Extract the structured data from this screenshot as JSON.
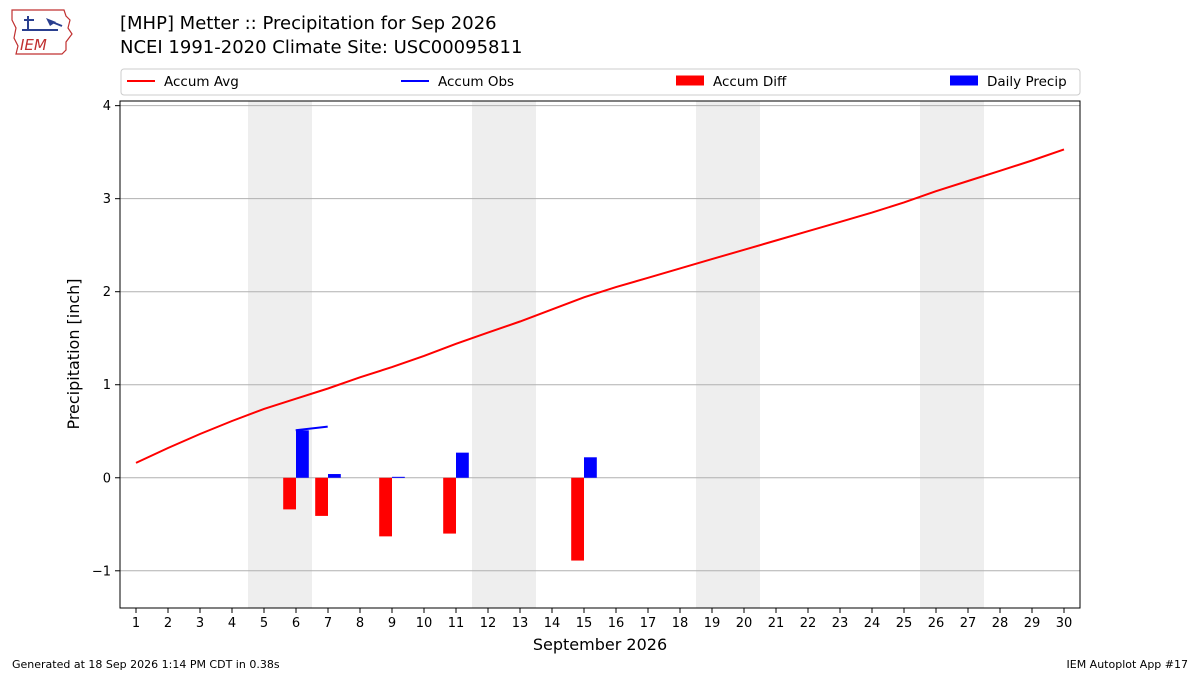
{
  "header": {
    "title_line1": "[MHP] Metter :: Precipitation for Sep 2026",
    "title_line2": "NCEI 1991-2020 Climate Site: USC00095811"
  },
  "logo": {
    "text": "IEM",
    "icon": "iem-iowa-logo-icon"
  },
  "footer": {
    "generated": "Generated at 18 Sep 2026 1:14 PM CDT in 0.38s",
    "app": "IEM Autoplot App #17"
  },
  "colors": {
    "accum_avg": "#ff0000",
    "accum_obs": "#0000ff",
    "accum_diff": "#ff0000",
    "daily_precip": "#0000ff",
    "weekend_shade": "#eeeeee",
    "grid": "#b0b0b0"
  },
  "chart_data": {
    "type": "bar",
    "xlabel": "September 2026",
    "ylabel": "Precipitation [inch]",
    "ylim": [
      -1.4,
      4.05
    ],
    "yticks": [
      -1,
      0,
      1,
      2,
      3,
      4
    ],
    "ytick_labels": [
      "−1",
      "0",
      "1",
      "2",
      "3",
      "4"
    ],
    "grid": "horizontal",
    "legend_position": "top",
    "x": [
      1,
      2,
      3,
      4,
      5,
      6,
      7,
      8,
      9,
      10,
      11,
      12,
      13,
      14,
      15,
      16,
      17,
      18,
      19,
      20,
      21,
      22,
      23,
      24,
      25,
      26,
      27,
      28,
      29,
      30
    ],
    "weekend_days": [
      5,
      6,
      12,
      13,
      19,
      20,
      26,
      27
    ],
    "legend": [
      {
        "label": "Accum Avg",
        "kind": "line",
        "color": "#ff0000"
      },
      {
        "label": "Accum Obs",
        "kind": "line",
        "color": "#0000ff"
      },
      {
        "label": "Accum Diff",
        "kind": "bar",
        "color": "#ff0000"
      },
      {
        "label": "Daily Precip",
        "kind": "bar",
        "color": "#0000ff"
      }
    ],
    "series": [
      {
        "name": "Accum Avg",
        "type": "line",
        "x": [
          1,
          2,
          3,
          4,
          5,
          6,
          7,
          8,
          9,
          10,
          11,
          12,
          13,
          14,
          15,
          16,
          17,
          18,
          19,
          20,
          21,
          22,
          23,
          24,
          25,
          26,
          27,
          28,
          29,
          30
        ],
        "values": [
          0.16,
          0.32,
          0.47,
          0.61,
          0.74,
          0.85,
          0.96,
          1.08,
          1.19,
          1.31,
          1.44,
          1.56,
          1.68,
          1.81,
          1.94,
          2.05,
          2.15,
          2.25,
          2.35,
          2.45,
          2.55,
          2.65,
          2.75,
          2.85,
          2.96,
          3.08,
          3.19,
          3.3,
          3.41,
          3.53
        ]
      },
      {
        "name": "Accum Obs",
        "type": "line",
        "x": [
          6,
          7
        ],
        "values": [
          0.51,
          0.55
        ]
      },
      {
        "name": "Accum Diff",
        "type": "bar",
        "x": [
          6,
          7,
          9,
          11,
          15
        ],
        "values": [
          -0.34,
          -0.41,
          -0.63,
          -0.6,
          -0.89
        ]
      },
      {
        "name": "Daily Precip",
        "type": "bar",
        "x": [
          6,
          7,
          9,
          11,
          15
        ],
        "values": [
          0.51,
          0.04,
          0.01,
          0.27,
          0.22
        ]
      }
    ]
  }
}
